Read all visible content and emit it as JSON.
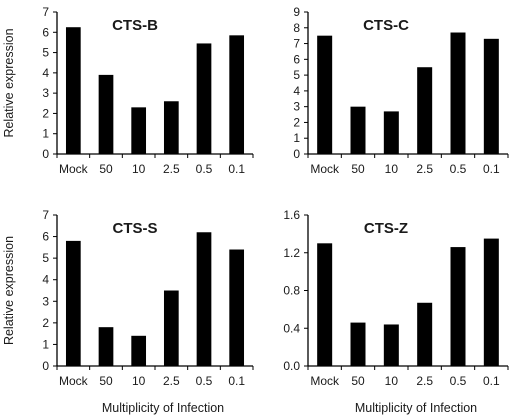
{
  "colors": {
    "bar": "#000000",
    "axis": "#000000",
    "text": "#1a1a1a"
  },
  "chart_data": [
    {
      "type": "bar",
      "title": "CTS-B",
      "categories": [
        "Mock",
        "50",
        "10",
        "2.5",
        "0.5",
        "0.1"
      ],
      "values": [
        6.25,
        3.9,
        2.3,
        2.6,
        5.45,
        5.85
      ],
      "ylim": [
        0,
        7
      ],
      "yticks": [
        "0",
        "1",
        "2",
        "3",
        "4",
        "5",
        "6",
        "7"
      ],
      "ylabel": "Relative expression",
      "xlabel": ""
    },
    {
      "type": "bar",
      "title": "CTS-C",
      "categories": [
        "Mock",
        "50",
        "10",
        "2.5",
        "0.5",
        "0.1"
      ],
      "values": [
        7.5,
        3.0,
        2.7,
        5.5,
        7.7,
        7.3
      ],
      "ylim": [
        0,
        9
      ],
      "yticks": [
        "0",
        "1",
        "2",
        "3",
        "4",
        "5",
        "6",
        "7",
        "8",
        "9"
      ],
      "ylabel": "",
      "xlabel": ""
    },
    {
      "type": "bar",
      "title": "CTS-S",
      "categories": [
        "Mock",
        "50",
        "10",
        "2.5",
        "0.5",
        "0.1"
      ],
      "values": [
        5.8,
        1.8,
        1.4,
        3.5,
        6.2,
        5.4
      ],
      "ylim": [
        0,
        7
      ],
      "yticks": [
        "0",
        "1",
        "2",
        "3",
        "4",
        "5",
        "6",
        "7"
      ],
      "ylabel": "Relative expression",
      "xlabel": "Multiplicity of Infection"
    },
    {
      "type": "bar",
      "title": "CTS-Z",
      "categories": [
        "Mock",
        "50",
        "10",
        "2.5",
        "0.5",
        "0.1"
      ],
      "values": [
        1.3,
        0.46,
        0.44,
        0.67,
        1.26,
        1.35
      ],
      "ylim": [
        0,
        1.6
      ],
      "yticks": [
        "0.0",
        "0.4",
        "0.8",
        "1.2",
        "1.6"
      ],
      "ylabel": "",
      "xlabel": "Multiplicity of Infection"
    }
  ]
}
